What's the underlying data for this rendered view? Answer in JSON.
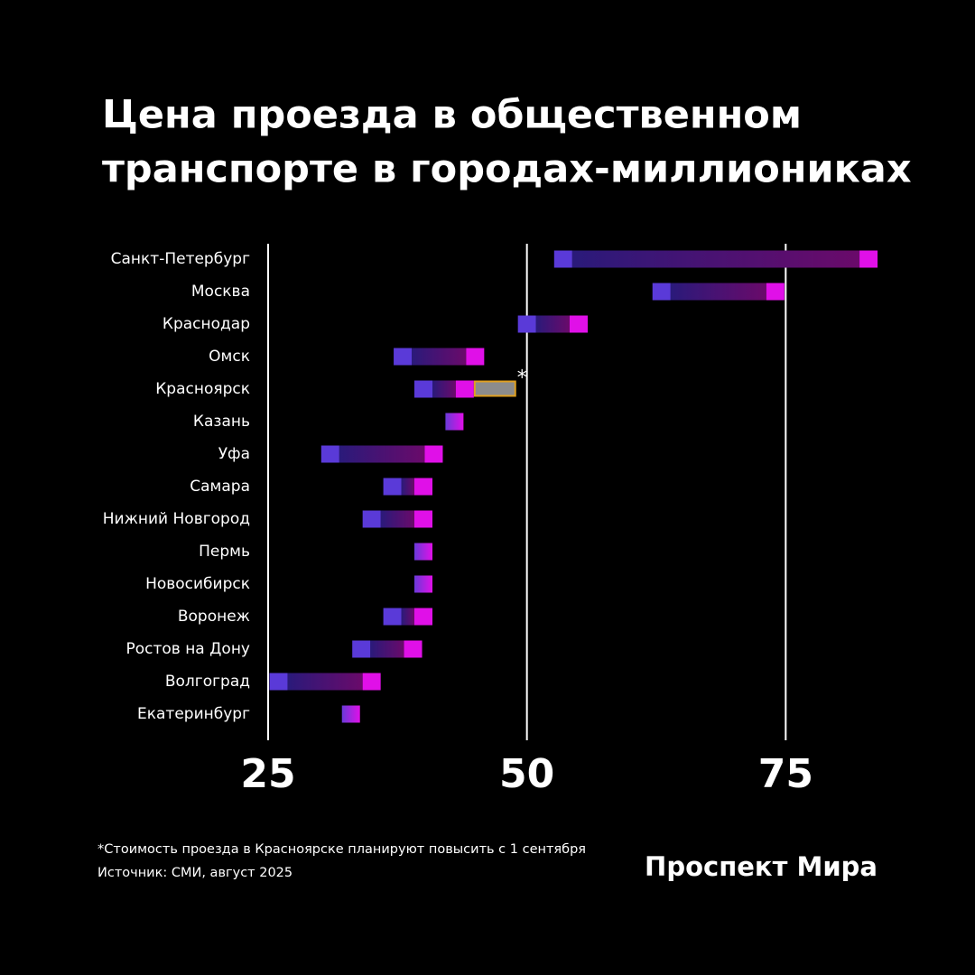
{
  "chart_data": {
    "type": "range",
    "title": [
      "Цена проезда в общественном",
      "транспорте в городах-миллиониках"
    ],
    "categories": [
      "Санкт-Петербург",
      "Москва",
      "Краснодар",
      "Омск",
      "Красноярск",
      "Казань",
      "Уфа",
      "Самара",
      "Нижний Новгород",
      "Пермь",
      "Новосибирск",
      "Воронеж",
      "Ростов на Дону",
      "Волгоград",
      "Екатеринбург"
    ],
    "min": [
      53.5,
      63,
      50,
      38,
      40,
      43,
      31,
      37,
      35,
      40,
      40,
      37,
      34,
      26,
      33
    ],
    "max": [
      83,
      74,
      55,
      45,
      44,
      null,
      41,
      40,
      40,
      null,
      null,
      40,
      39,
      35,
      null
    ],
    "planned": [
      null,
      null,
      null,
      null,
      48,
      null,
      null,
      null,
      null,
      null,
      null,
      null,
      null,
      null,
      null
    ],
    "planned_mark": "*",
    "min_color": "#5a3ad8",
    "max_color": "#e010e8",
    "planned_color": "#8c8c8c",
    "xlim": [
      25,
      85
    ],
    "xticks": [
      25,
      50,
      75
    ],
    "grid": true,
    "footnote": "*Стоимость проезда в Красноярске планируют повысить с 1 сентября",
    "source": "Источник: СМИ, август 2025",
    "brand": "Проспект Мира"
  }
}
